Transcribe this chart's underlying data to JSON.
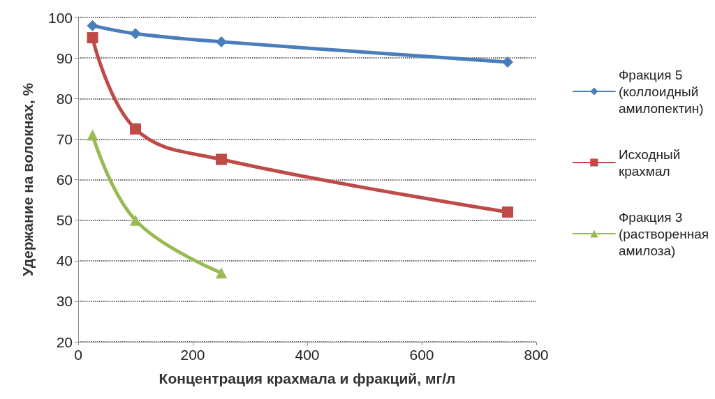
{
  "chart_data": {
    "type": "line",
    "xlabel": "Концентрация крахмала и фракций, мг/л",
    "ylabel": "Удержание на волокнах, %",
    "xlim": [
      0,
      800
    ],
    "xticks": [
      0,
      200,
      400,
      600,
      800
    ],
    "ylim": [
      20,
      100
    ],
    "yticks": [
      20,
      30,
      40,
      50,
      60,
      70,
      80,
      90,
      100
    ],
    "grid": "y",
    "legend": "right",
    "line_style": "solid",
    "series": [
      {
        "name": "Фракция 5 (коллоидный амилопектин)",
        "color": "#4a7ebb",
        "marker": "diamond",
        "x": [
          25,
          100,
          250,
          750
        ],
        "values": [
          98,
          96,
          94,
          89
        ]
      },
      {
        "name": "Исходный крахмал",
        "color": "#be4b48",
        "marker": "square",
        "x": [
          25,
          100,
          250,
          750
        ],
        "values": [
          95,
          72.5,
          65,
          52
        ]
      },
      {
        "name": "Фракция 3 (растворенная амилоза)",
        "color": "#98b954",
        "marker": "triangle",
        "x": [
          25,
          100,
          250
        ],
        "values": [
          71,
          50,
          37
        ]
      }
    ]
  }
}
